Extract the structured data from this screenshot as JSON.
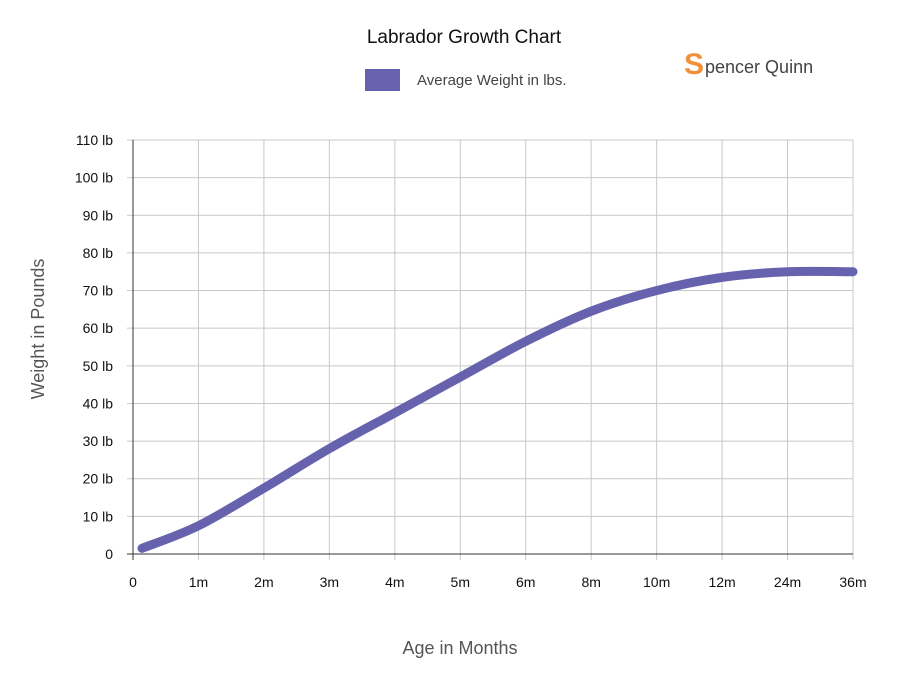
{
  "chart_data": {
    "type": "line",
    "title": "Labrador Growth Chart",
    "xlabel": "Age in Months",
    "ylabel": "Weight in Pounds",
    "categories": [
      "0",
      "1m",
      "2m",
      "3m",
      "4m",
      "5m",
      "6m",
      "8m",
      "10m",
      "12m",
      "24m",
      "36m"
    ],
    "y_ticks": [
      "0",
      "10 lb",
      "20 lb",
      "30 lb",
      "40 lb",
      "50 lb",
      "60 lb",
      "70 lb",
      "80 lb",
      "90 lb",
      "100 lb",
      "110 lb"
    ],
    "ylim": [
      0,
      110
    ],
    "grid": true,
    "legend": "top",
    "series": [
      {
        "name": "Average Weight in lbs.",
        "color": "#6762ad",
        "values": [
          1.5,
          7.5,
          17.5,
          28,
          37.5,
          47,
          56.5,
          64.5,
          70,
          73.5,
          75,
          75
        ]
      }
    ]
  },
  "brand": {
    "initial": "S",
    "rest": "pencer Quinn",
    "color": "#f0913a"
  }
}
